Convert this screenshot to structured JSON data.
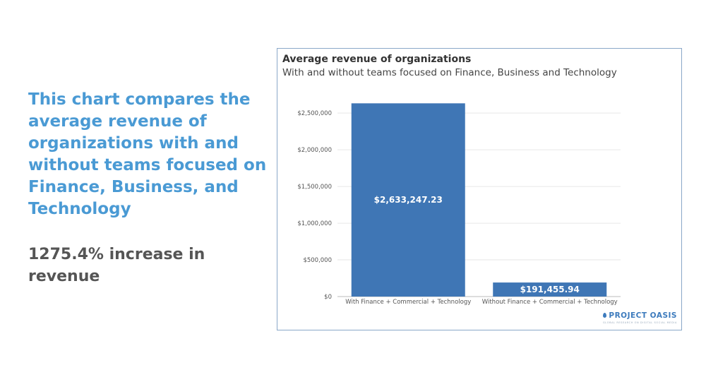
{
  "headline": "This chart compares the average revenue of organizations with and without teams focused on Finance, Business, and Technology",
  "stat": "1275.4% increase in revenue",
  "logo": {
    "name": "PROJECT OASIS",
    "tagline": "GLOBAL RESEARCH ON DIGITAL SOCIAL MEDIA"
  },
  "colors": {
    "bar": "#3f76b5",
    "headline": "#4a9ad4",
    "grid": "#e6e6e6"
  },
  "chart_data": {
    "type": "bar",
    "title": "Average revenue of organizations",
    "subtitle": "With and without teams focused on Finance, Business and Technology",
    "xlabel": "",
    "ylabel": "",
    "categories": [
      "With Finance + Commercial + Technology",
      "Without Finance + Commercial + Technology"
    ],
    "values": [
      2633247.23,
      191455.94
    ],
    "value_labels": [
      "$2,633,247.23",
      "$191,455.94"
    ],
    "yticks": [
      0,
      500000,
      1000000,
      1500000,
      2000000,
      2500000
    ],
    "ytick_labels": [
      "$0",
      "$500,000",
      "$1,000,000",
      "$1,500,000",
      "$2,000,000",
      "$2,500,000"
    ],
    "ylim": [
      0,
      2800000
    ],
    "grid": true,
    "legend": "none"
  }
}
